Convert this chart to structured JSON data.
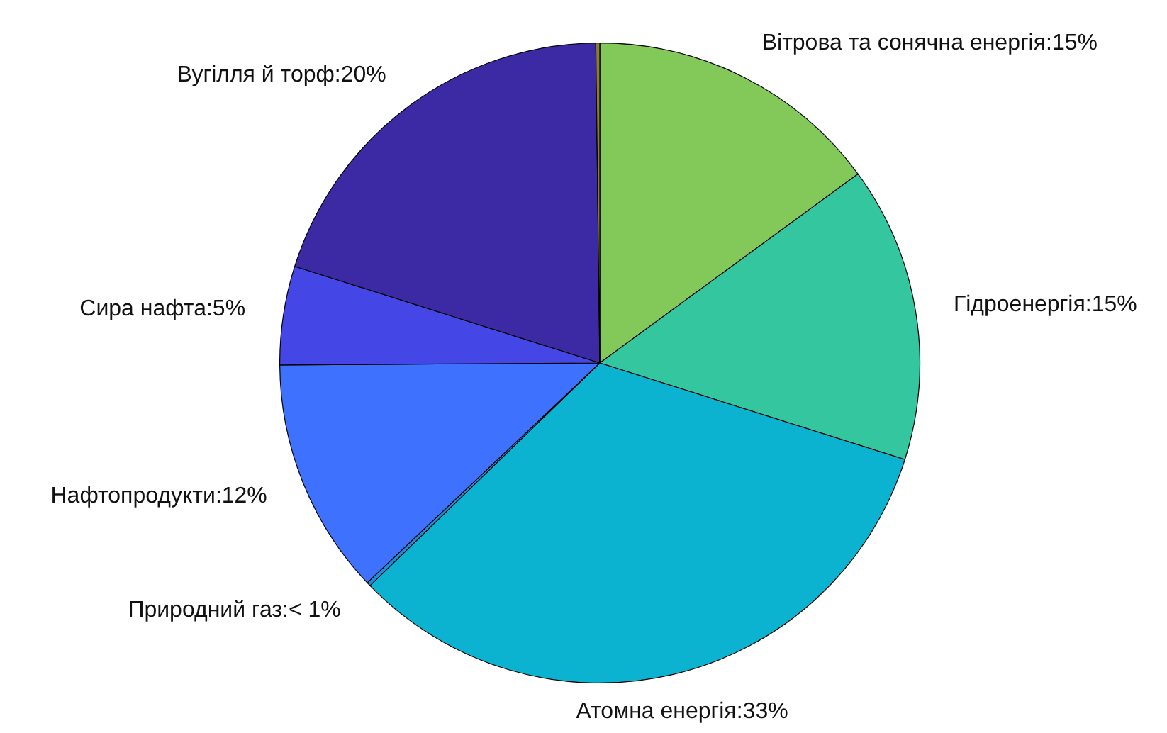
{
  "chart_data": {
    "type": "pie",
    "categories": [
      "Вітрова та сонячна енергія",
      "Гідроенергія",
      "Атомна енергія",
      "Природний газ",
      "Нафтопродукти",
      "Сира нафта",
      "Вугілля й торф",
      null
    ],
    "values": [
      15,
      15,
      33,
      0.2,
      12,
      5,
      20,
      0.2
    ],
    "value_labels": [
      "15%",
      "15%",
      "33%",
      "< 1%",
      "12%",
      "5%",
      "20%",
      null
    ],
    "colors": [
      "#82c95a",
      "#33c69f",
      "#0bb3d0",
      "#1b8fdb",
      "#3e71fe",
      "#4546e6",
      "#3b2aa4",
      "#8c7a35"
    ]
  }
}
